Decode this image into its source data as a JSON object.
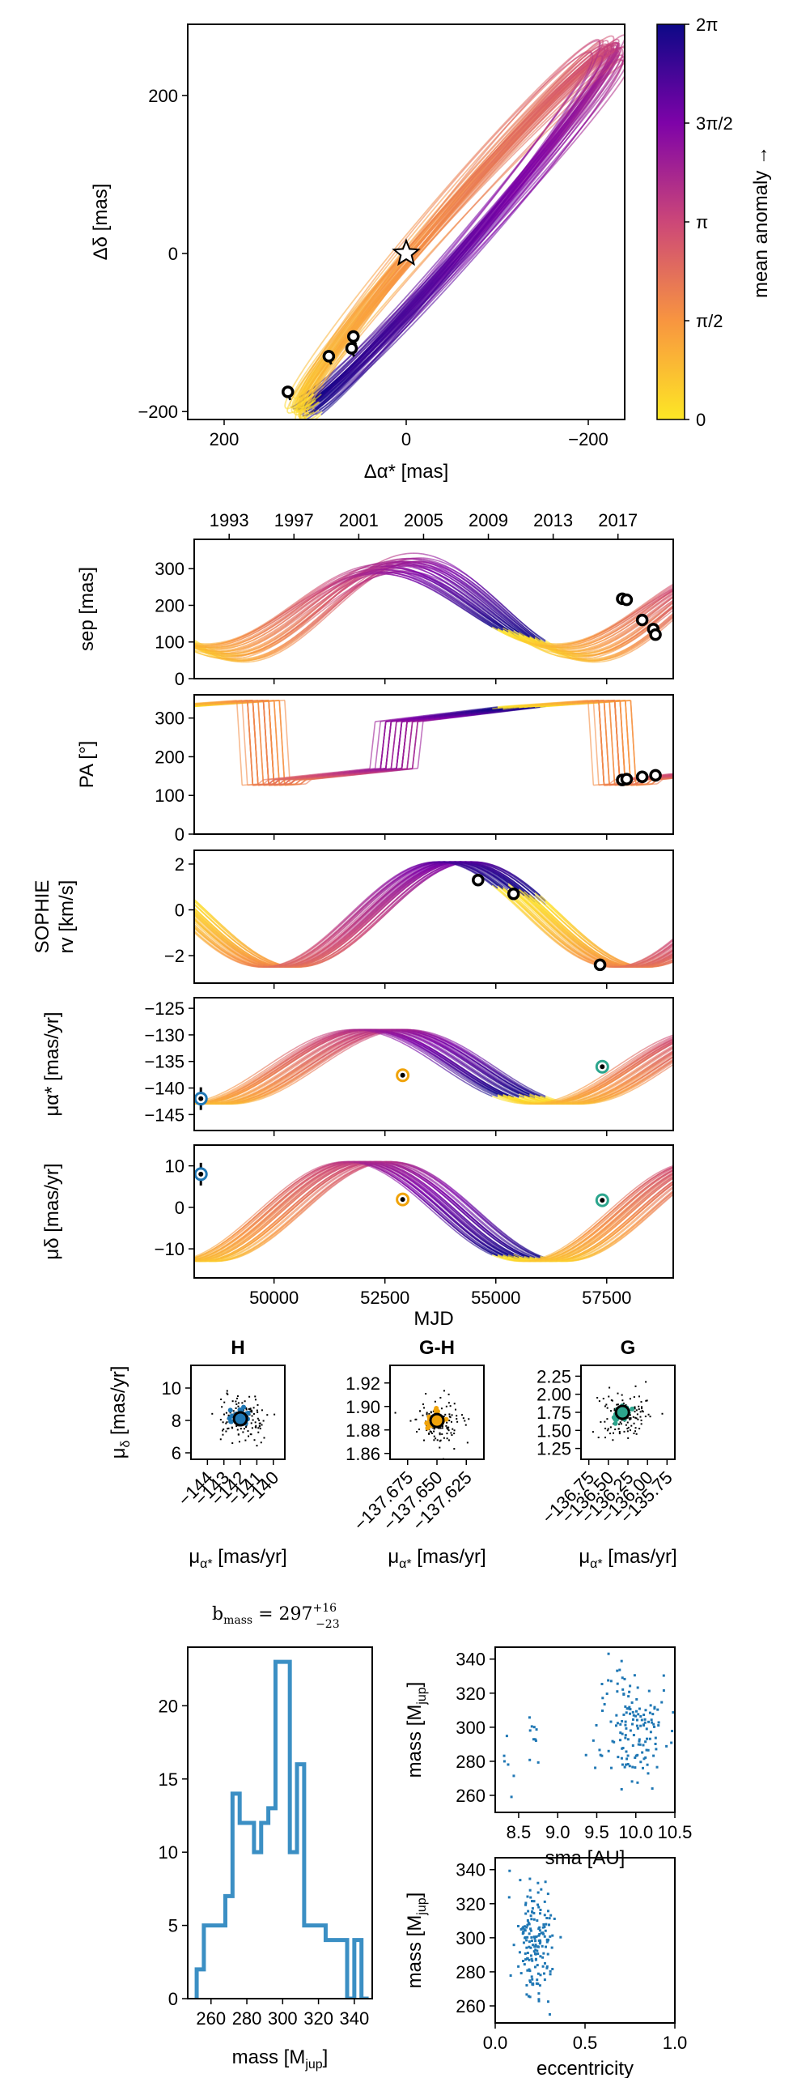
{
  "chart_data": [
    {
      "id": "orbit",
      "type": "line",
      "xlabel": "Δα* [mas]",
      "ylabel": "Δδ [mas]",
      "xlim": [
        240,
        -240
      ],
      "ylim": [
        -210,
        290
      ],
      "xticks": [
        200,
        0,
        -200
      ],
      "xtick_labels": [
        "200",
        "0",
        "−200"
      ],
      "yticks": [
        200,
        0,
        -200
      ],
      "ytick_labels": [
        "200",
        "0",
        "−200"
      ],
      "star": [
        0,
        0
      ],
      "points": [
        [
          130,
          -175
        ],
        [
          85,
          -130
        ],
        [
          60,
          -120
        ],
        [
          58,
          -105
        ]
      ],
      "colorbar": {
        "label": "mean anomaly →",
        "tick_labels": [
          "0",
          "π/2",
          "π",
          "3π/2",
          "2π"
        ],
        "colors": [
          "#fde725",
          "#f89540",
          "#cc4778",
          "#7e03a8",
          "#0d0887"
        ]
      }
    },
    {
      "id": "time-axis",
      "type": "line",
      "top_tick_labels": [
        "1993",
        "1997",
        "2001",
        "2005",
        "2009",
        "2013",
        "2017"
      ],
      "top_tick_mjd": [
        48988,
        50449,
        51910,
        53371,
        54832,
        56293,
        57754
      ],
      "xlim": [
        48200,
        59000
      ],
      "xticks": [
        50000,
        52500,
        55000,
        57500
      ],
      "xtick_labels": [
        "50000",
        "52500",
        "55000",
        "57500"
      ],
      "xlabel": "MJD"
    },
    {
      "id": "sep",
      "type": "line",
      "ylabel": "sep [mas]",
      "ylim": [
        0,
        380
      ],
      "yticks": [
        0,
        100,
        200,
        300
      ],
      "ytick_labels": [
        "0",
        "100",
        "200",
        "300"
      ],
      "points": [
        [
          57850,
          218
        ],
        [
          57950,
          215
        ],
        [
          58300,
          160
        ],
        [
          58550,
          135
        ],
        [
          58600,
          120
        ]
      ]
    },
    {
      "id": "pa",
      "type": "line",
      "ylabel": "PA [°]",
      "ylim": [
        0,
        360
      ],
      "yticks": [
        0,
        100,
        200,
        300
      ],
      "ytick_labels": [
        "0",
        "100",
        "200",
        "300"
      ],
      "points": [
        [
          57850,
          140
        ],
        [
          57950,
          142
        ],
        [
          58300,
          148
        ],
        [
          58600,
          152
        ]
      ]
    },
    {
      "id": "rv",
      "type": "line",
      "ylabel": "SOPHIE rv [km/s]",
      "ylim": [
        -3.2,
        2.6
      ],
      "yticks": [
        2,
        0,
        -2
      ],
      "ytick_labels": [
        "2",
        "0",
        "−2"
      ],
      "points": [
        [
          54600,
          1.3
        ],
        [
          55400,
          0.7
        ],
        [
          57350,
          -2.4
        ]
      ]
    },
    {
      "id": "pmra",
      "type": "line",
      "ylabel": "μα* [mas/yr]",
      "ylim": [
        -148,
        -123
      ],
      "yticks": [
        -125,
        -130,
        -135,
        -140,
        -145
      ],
      "ytick_labels": [
        "−125",
        "−130",
        "−135",
        "−140",
        "−145"
      ],
      "points": [
        {
          "mjd": 48350,
          "val": -142,
          "kind": "H"
        },
        {
          "mjd": 52900,
          "val": -137.6,
          "kind": "G-H"
        },
        {
          "mjd": 57400,
          "val": -136,
          "kind": "G"
        }
      ]
    },
    {
      "id": "pmdec",
      "type": "line",
      "ylabel": "μδ [mas/yr]",
      "ylim": [
        -17,
        15
      ],
      "yticks": [
        10,
        0,
        -10
      ],
      "ytick_labels": [
        "10",
        "0",
        "−10"
      ],
      "points": [
        {
          "mjd": 48350,
          "val": 8,
          "kind": "H"
        },
        {
          "mjd": 52900,
          "val": 1.9,
          "kind": "G-H"
        },
        {
          "mjd": 57400,
          "val": 1.7,
          "kind": "G"
        }
      ]
    },
    {
      "id": "scatter-H",
      "type": "scatter",
      "title": "H",
      "xlabel": "μα* [mas/yr]",
      "ylabel": "μδ [mas/yr]",
      "xlim": [
        -145,
        -139.3
      ],
      "ylim": [
        5.6,
        11.4
      ],
      "xtick_labels": [
        "−144",
        "−143",
        "−142",
        "−141",
        "−140"
      ],
      "xticks": [
        -144,
        -143,
        -142,
        -141,
        -140
      ],
      "ytick_labels": [
        "6",
        "8",
        "10"
      ],
      "yticks": [
        6,
        8,
        10
      ],
      "center": [
        -142,
        8.1
      ],
      "color": "#1f77b4"
    },
    {
      "id": "scatter-GH",
      "type": "scatter",
      "title": "G-H",
      "xlabel": "μα* [mas/yr]",
      "xlim": [
        -137.69,
        -137.61
      ],
      "ylim": [
        1.855,
        1.935
      ],
      "xtick_labels": [
        "−137.675",
        "−137.650",
        "−137.625"
      ],
      "xticks": [
        -137.675,
        -137.65,
        -137.625
      ],
      "ytick_labels": [
        "1.86",
        "1.88",
        "1.90",
        "1.92"
      ],
      "yticks": [
        1.86,
        1.88,
        1.9,
        1.92
      ],
      "center": [
        -137.65,
        1.888
      ],
      "color": "#f0a30a"
    },
    {
      "id": "scatter-G",
      "type": "scatter",
      "title": "G",
      "xlabel": "μα* [mas/yr]",
      "xlim": [
        -136.85,
        -135.65
      ],
      "ylim": [
        1.1,
        2.4
      ],
      "xtick_labels": [
        "−136.75",
        "−136.50",
        "−136.25",
        "−136.00",
        "−135.75"
      ],
      "xticks": [
        -136.75,
        -136.5,
        -136.25,
        -136,
        -135.75
      ],
      "ytick_labels": [
        "1.25",
        "1.50",
        "1.75",
        "2.00",
        "2.25"
      ],
      "yticks": [
        1.25,
        1.5,
        1.75,
        2,
        2.25
      ],
      "center": [
        -136.32,
        1.75
      ],
      "color": "#2ca58d"
    },
    {
      "id": "hist",
      "type": "bar",
      "title": "b",
      "title_sub": "mass",
      "title_eq": " = 297",
      "title_sup": "+16",
      "title_low": "−23",
      "xlabel": "mass [M",
      "xlabel_sub": "jup",
      "xlabel_end": "]",
      "xlim": [
        247,
        350
      ],
      "ylim": [
        0,
        24
      ],
      "xticks": [
        260,
        280,
        300,
        320,
        340
      ],
      "xtick_labels": [
        "260",
        "280",
        "300",
        "320",
        "340"
      ],
      "yticks": [
        0,
        5,
        10,
        15,
        20
      ],
      "ytick_labels": [
        "0",
        "5",
        "10",
        "15",
        "20"
      ],
      "bin_edges": [
        252,
        256,
        264,
        268,
        272,
        276,
        280,
        284,
        288,
        292,
        296,
        300,
        304,
        308,
        312,
        316,
        320,
        324,
        328,
        332,
        336,
        340,
        344,
        348
      ],
      "values": [
        2,
        5,
        5,
        7,
        14,
        12,
        12,
        10,
        12,
        13,
        23,
        23,
        10,
        16,
        5,
        5,
        5,
        4,
        4,
        4,
        0,
        4,
        0
      ],
      "color": "#3b8fc4"
    },
    {
      "id": "sma-mass",
      "type": "scatter",
      "xlabel": "sma [AU]",
      "ylabel": "mass [M",
      "ylabel_sub": "jup",
      "ylabel_end": "]",
      "xlim": [
        8.2,
        10.5
      ],
      "ylim": [
        250,
        347
      ],
      "xticks": [
        8.5,
        9.0,
        9.5,
        10.0,
        10.5
      ],
      "xtick_labels": [
        "8.5",
        "9.0",
        "9.5",
        "10.0",
        "10.5"
      ],
      "yticks": [
        260,
        280,
        300,
        320,
        340
      ],
      "ytick_labels": [
        "260",
        "280",
        "300",
        "320",
        "340"
      ],
      "color": "#1f77b4"
    },
    {
      "id": "ecc-mass",
      "type": "scatter",
      "xlabel": "eccentricity",
      "ylabel": "mass [M",
      "ylabel_sub": "jup",
      "ylabel_end": "]",
      "xlim": [
        0,
        1
      ],
      "ylim": [
        250,
        347
      ],
      "xticks": [
        0,
        0.5,
        1
      ],
      "xtick_labels": [
        "0.0",
        "0.5",
        "1.0"
      ],
      "yticks": [
        260,
        280,
        300,
        320,
        340
      ],
      "ytick_labels": [
        "260",
        "280",
        "300",
        "320",
        "340"
      ],
      "color": "#1f77b4"
    }
  ]
}
